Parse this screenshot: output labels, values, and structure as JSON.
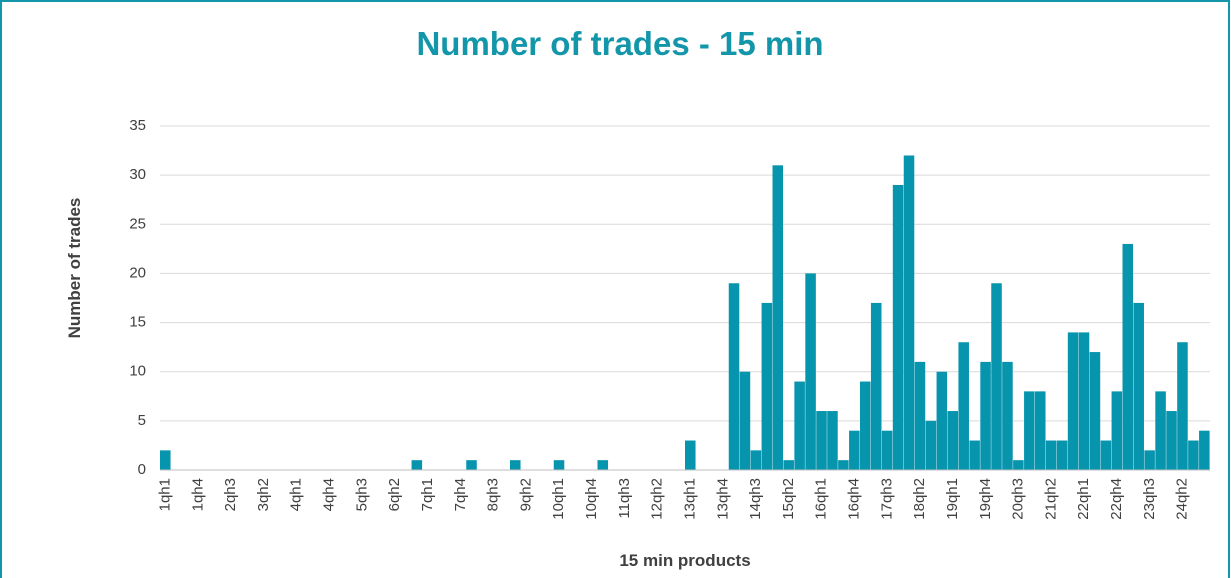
{
  "chart_data": {
    "type": "bar",
    "title": "Number of trades - 15 min",
    "x_label": "15 min products",
    "y_label": "Number of trades",
    "color": "#0795ae",
    "grid": true,
    "ylim": [
      0,
      35
    ],
    "yticks": [
      0,
      5,
      10,
      15,
      20,
      25,
      30,
      35
    ],
    "categories": [
      "1qh1",
      null,
      null,
      "1qh4",
      null,
      null,
      "2qh3",
      null,
      null,
      "3qh2",
      null,
      null,
      "4qh1",
      null,
      null,
      "4qh4",
      null,
      null,
      "5qh3",
      null,
      null,
      "6qh2",
      null,
      null,
      "7qh1",
      null,
      null,
      "7qh4",
      null,
      null,
      "8qh3",
      null,
      null,
      "9qh2",
      null,
      null,
      "10qh1",
      null,
      null,
      "10qh4",
      null,
      null,
      "11qh3",
      null,
      null,
      "12qh2",
      null,
      null,
      "13qh1",
      null,
      null,
      "13qh4",
      null,
      null,
      "14qh3",
      null,
      null,
      "15qh2",
      null,
      null,
      "16qh1",
      null,
      null,
      "16qh4",
      null,
      null,
      "17qh3",
      null,
      null,
      "18qh2",
      null,
      null,
      "19qh1",
      null,
      null,
      "19qh4",
      null,
      null,
      "20qh3",
      null,
      null,
      "21qh2",
      null,
      null,
      "22qh1",
      null,
      null,
      "22qh4",
      null,
      null,
      "23qh3",
      null,
      null,
      "24qh2",
      null,
      null
    ],
    "values": [
      2,
      0,
      0,
      0,
      0,
      0,
      0,
      0,
      0,
      0,
      0,
      0,
      0,
      0,
      0,
      0,
      0,
      0,
      0,
      0,
      0,
      0,
      0,
      1,
      0,
      0,
      0,
      0,
      1,
      0,
      0,
      0,
      1,
      0,
      0,
      0,
      1,
      0,
      0,
      0,
      1,
      0,
      0,
      0,
      0,
      0,
      0,
      0,
      3,
      0,
      0,
      0,
      19,
      10,
      2,
      17,
      31,
      1,
      9,
      20,
      6,
      6,
      1,
      4,
      9,
      17,
      4,
      29,
      32,
      11,
      5,
      10,
      6,
      13,
      3,
      11,
      19,
      11,
      1,
      8,
      8,
      3,
      3,
      14,
      14,
      12,
      3,
      8,
      23,
      17,
      2,
      8,
      6,
      13,
      3,
      4
    ]
  }
}
